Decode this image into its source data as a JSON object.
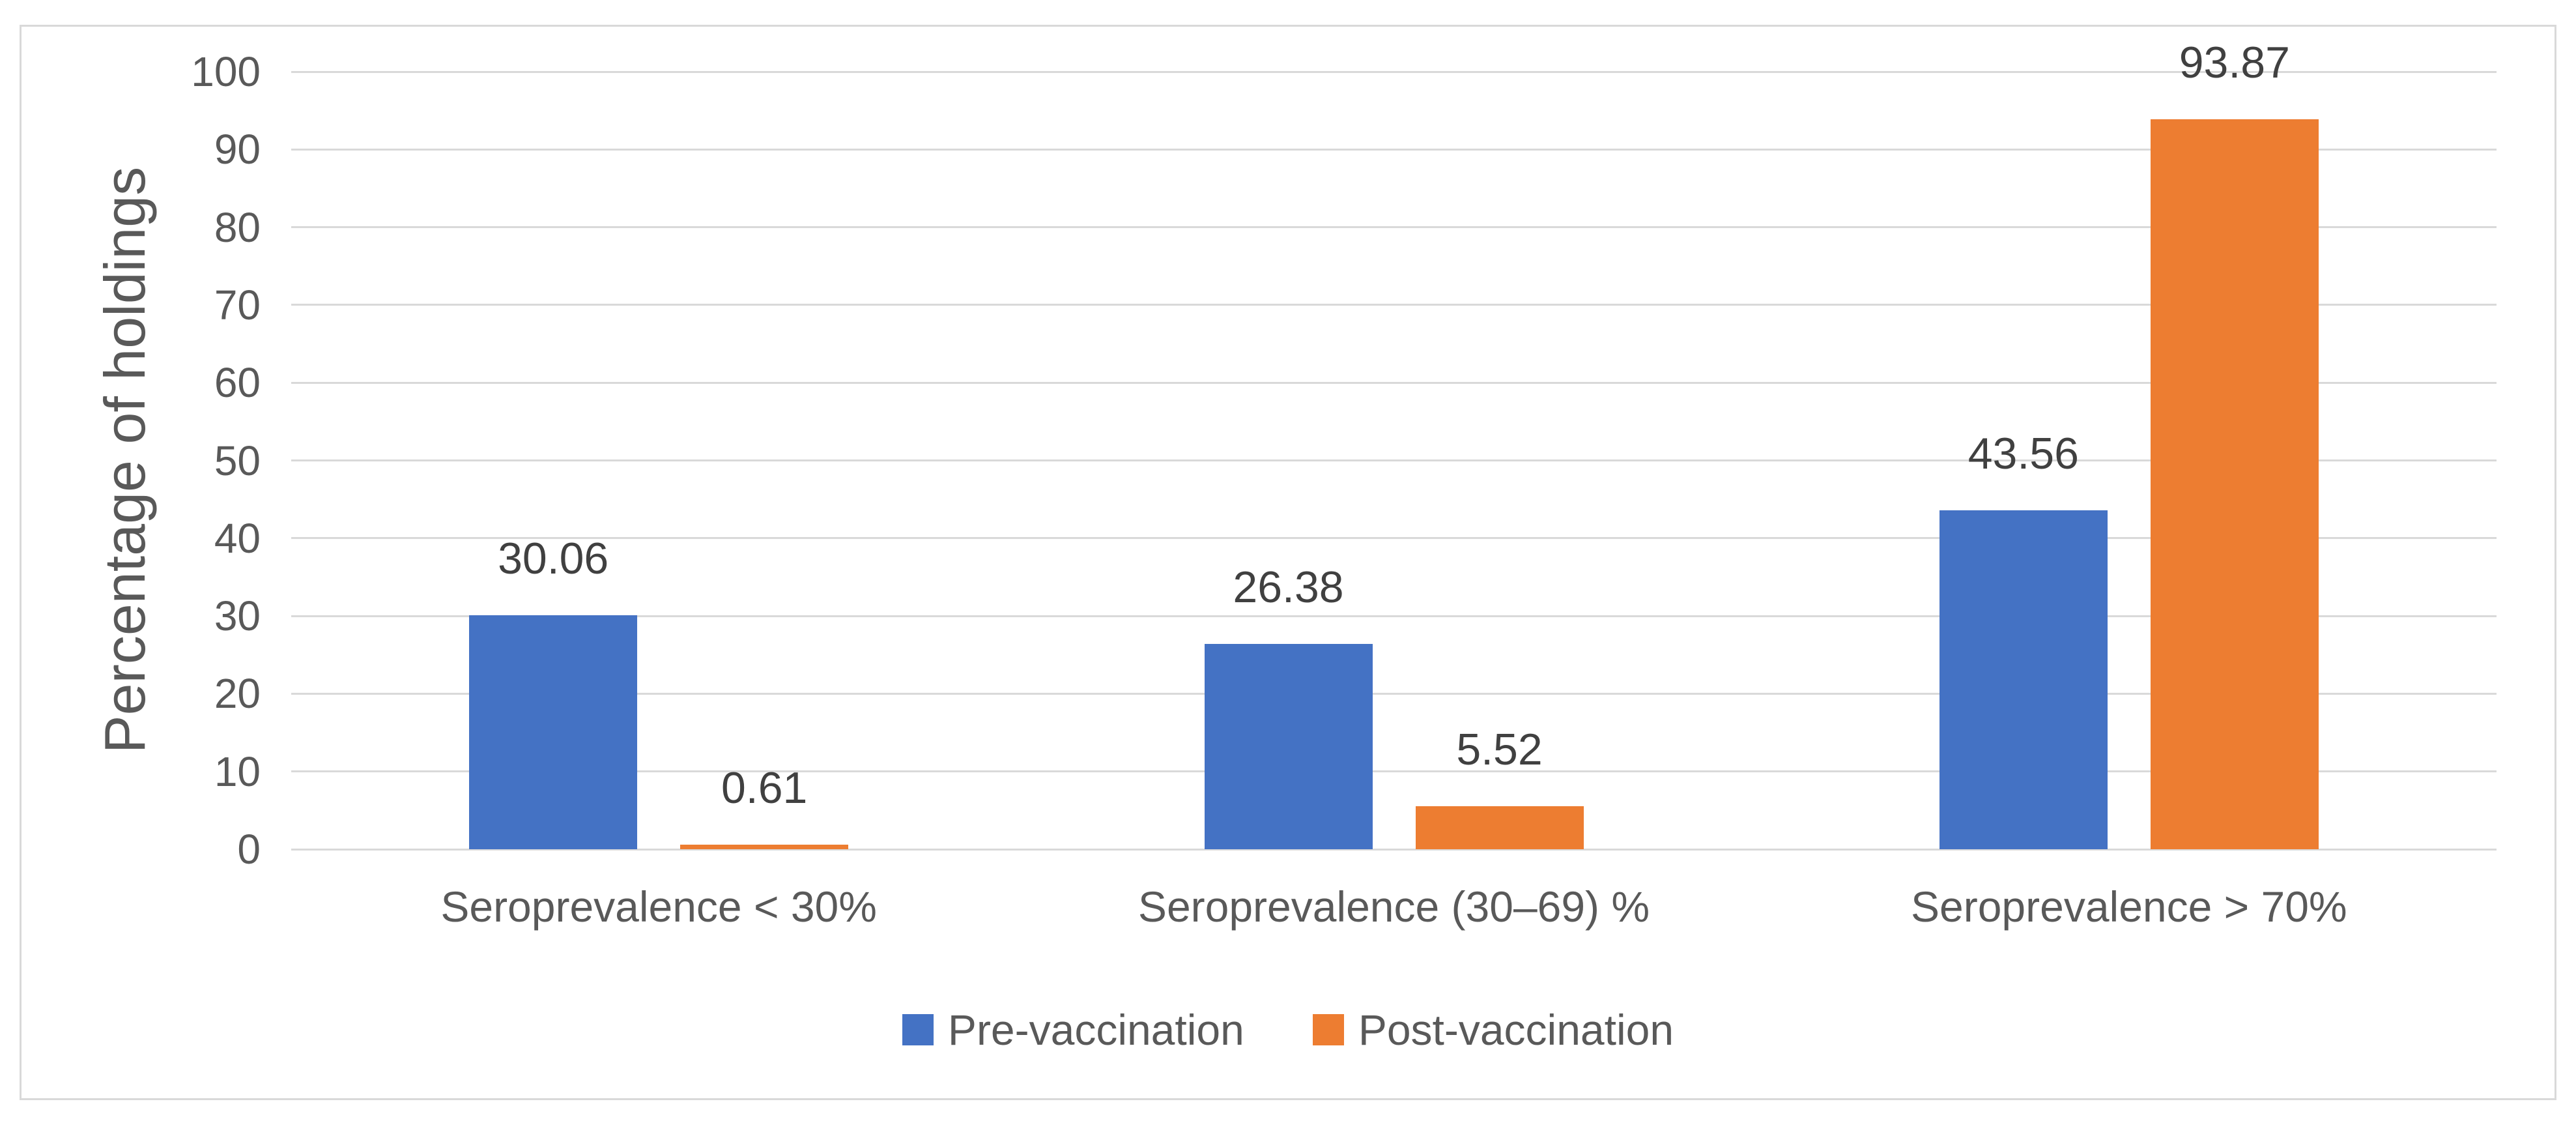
{
  "chart_data": {
    "type": "bar",
    "title": "",
    "categories": [
      "Seroprevalence < 30%",
      "Seroprevalence (30–69) %",
      "Seroprevalence > 70%"
    ],
    "series": [
      {
        "name": "Pre-vaccination",
        "color": "#4472C4",
        "values": [
          30.06,
          26.38,
          43.56
        ]
      },
      {
        "name": "Post-vaccination",
        "color": "#ED7D31",
        "values": [
          0.61,
          5.52,
          93.87
        ]
      }
    ],
    "xlabel": "",
    "ylabel": "Percentage of holdings",
    "ylim": [
      0,
      100
    ],
    "yticks": [
      0,
      10,
      20,
      30,
      40,
      50,
      60,
      70,
      80,
      90,
      100
    ],
    "grid": true,
    "legend_position": "bottom-center",
    "data_labels": true
  },
  "style": {
    "gridline_color": "#D9D9D9",
    "border_color": "#D9D9D9",
    "tick_text_color": "#595959",
    "data_label_color": "#404040",
    "background": "#FFFFFF"
  }
}
